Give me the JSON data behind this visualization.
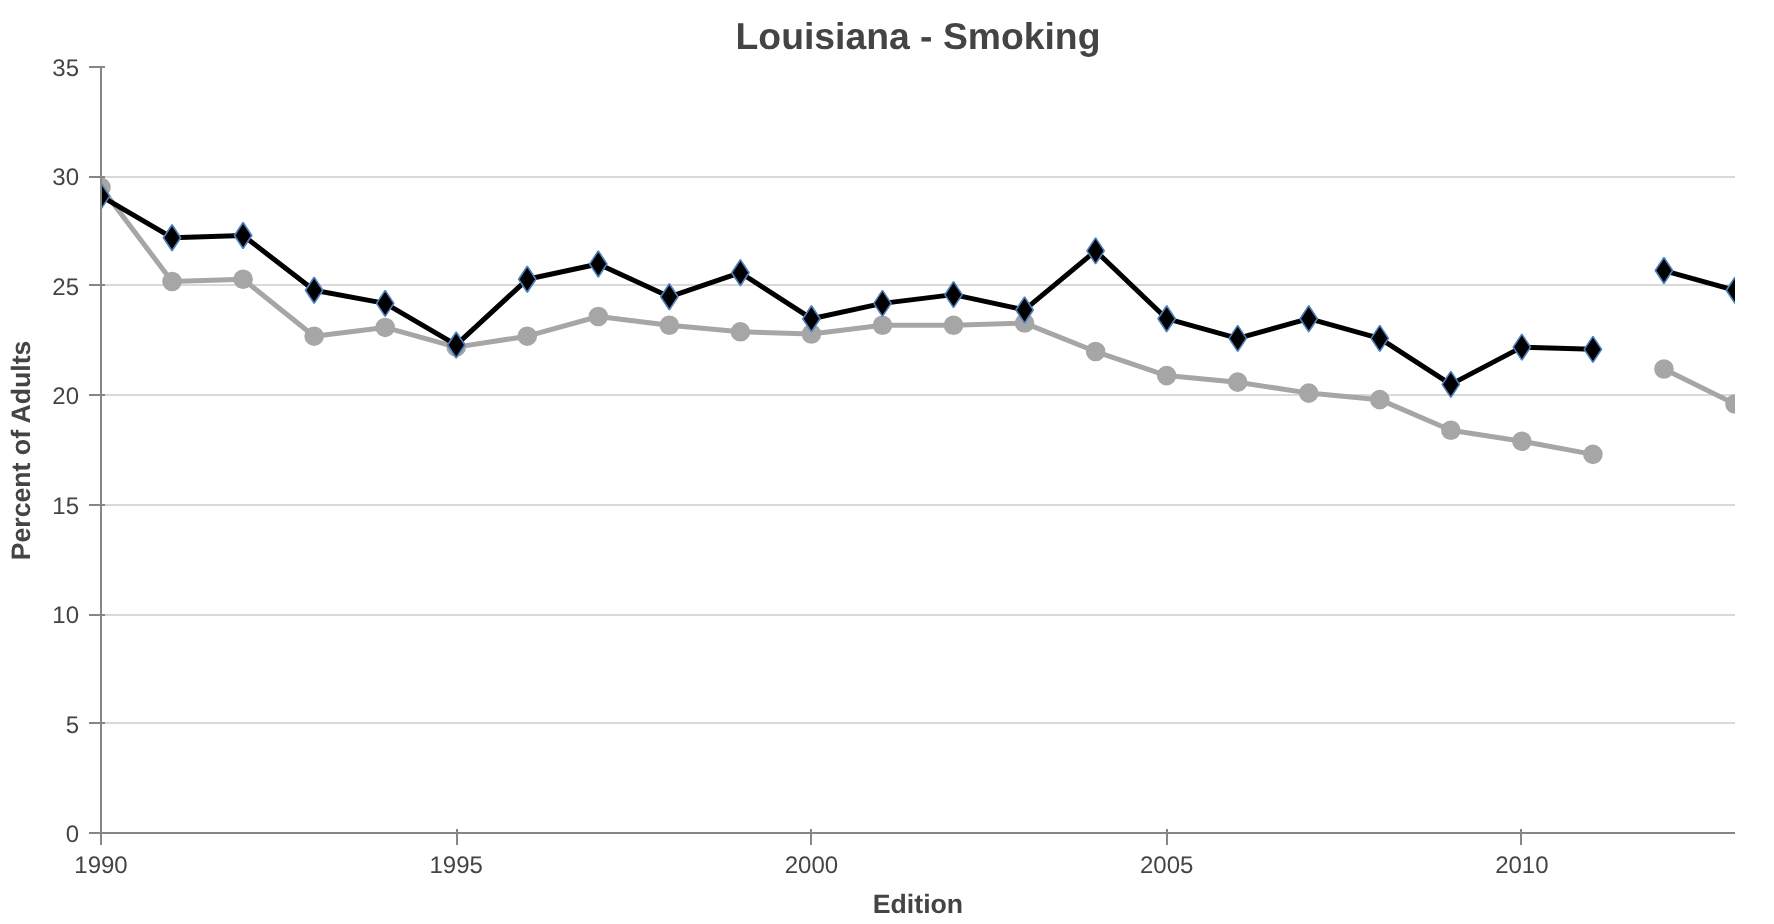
{
  "chart_data": {
    "type": "line",
    "title": "Louisiana - Smoking",
    "xlabel": "Edition",
    "ylabel": "Percent of Adults",
    "xlim": [
      1990,
      2013
    ],
    "xticks": [
      1990,
      1995,
      2000,
      2005,
      2010
    ],
    "ylim": [
      0,
      35
    ],
    "yticks": [
      0,
      5,
      10,
      15,
      20,
      25,
      30,
      35
    ],
    "grid": "y",
    "series": [
      {
        "color": "#000000",
        "marker": "diamond",
        "x": [
          1990,
          1991,
          1992,
          1993,
          1994,
          1995,
          1996,
          1997,
          1998,
          1999,
          2000,
          2001,
          2002,
          2003,
          2004,
          2005,
          2006,
          2007,
          2008,
          2009,
          2010,
          2011
        ],
        "values": [
          29.1,
          27.2,
          27.3,
          24.8,
          24.2,
          22.3,
          25.3,
          26.0,
          24.5,
          25.6,
          23.5,
          24.2,
          24.6,
          23.9,
          26.6,
          23.5,
          22.6,
          23.5,
          22.6,
          20.5,
          22.2,
          22.1
        ]
      },
      {
        "color": "#000000",
        "marker": "diamond",
        "x": [
          2012,
          2013
        ],
        "values": [
          25.7,
          24.8
        ]
      },
      {
        "color": "#a6a6a6",
        "marker": "circle",
        "x": [
          1990,
          1991,
          1992,
          1993,
          1994,
          1995,
          1996,
          1997,
          1998,
          1999,
          2000,
          2001,
          2002,
          2003,
          2004,
          2005,
          2006,
          2007,
          2008,
          2009,
          2010,
          2011
        ],
        "values": [
          29.5,
          25.2,
          25.3,
          22.7,
          23.1,
          22.2,
          22.7,
          23.6,
          23.2,
          22.9,
          22.8,
          23.2,
          23.2,
          23.3,
          22.0,
          20.9,
          20.6,
          20.1,
          19.8,
          18.4,
          17.9,
          17.3
        ]
      },
      {
        "color": "#a6a6a6",
        "marker": "circle",
        "x": [
          2012,
          2013
        ],
        "values": [
          21.2,
          19.6
        ]
      }
    ]
  }
}
